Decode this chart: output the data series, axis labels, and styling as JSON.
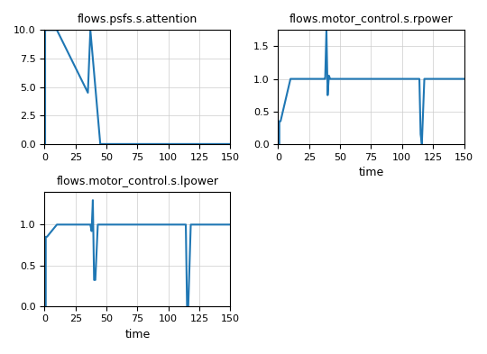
{
  "title1": "flows.psfs.s.attention",
  "title2": "flows.motor_control.s.rpower",
  "title3": "flows.motor_control.s.lpower",
  "xlabel": "time",
  "line_color": "#1f77b4",
  "xlim": [
    0,
    150
  ],
  "figsize": [
    5.4,
    3.93
  ],
  "dpi": 100
}
